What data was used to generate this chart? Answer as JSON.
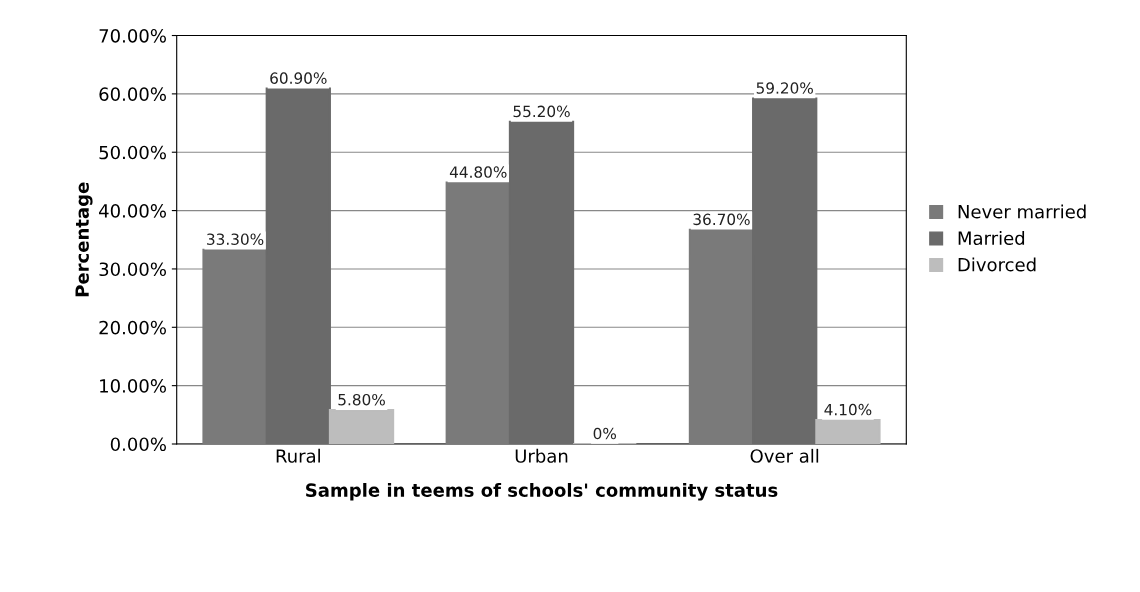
{
  "chart_data": {
    "type": "bar",
    "xlabel": "Sample in teems of schools' community status",
    "ylabel": "Percentage",
    "categories": [
      "Rural",
      "Urban",
      "Over all"
    ],
    "series": [
      {
        "name": "Never married",
        "color": "#7a7a7a",
        "values": [
          33.3,
          44.8,
          36.7
        ],
        "value_labels": [
          "33.30%",
          "44.80%",
          "36.70%"
        ]
      },
      {
        "name": "Married",
        "color": "#6a6a6a",
        "values": [
          60.9,
          55.2,
          59.2
        ],
        "value_labels": [
          "60.90%",
          "55.20%",
          "59.20%"
        ]
      },
      {
        "name": "Divorced",
        "color": "#bdbdbd",
        "values": [
          5.8,
          0,
          4.1
        ],
        "value_labels": [
          "5.80%",
          "0%",
          "4.10%"
        ]
      }
    ],
    "ylim": [
      0,
      70
    ],
    "yticks": [
      {
        "value": 0,
        "label": "0.00%"
      },
      {
        "value": 10,
        "label": "10.00%"
      },
      {
        "value": 20,
        "label": "20.00%"
      },
      {
        "value": 30,
        "label": "30.00%"
      },
      {
        "value": 40,
        "label": "40.00%"
      },
      {
        "value": 50,
        "label": "50.00%"
      },
      {
        "value": 60,
        "label": "60.00%"
      },
      {
        "value": 70,
        "label": "70.00%"
      }
    ],
    "grid": "y",
    "legend": "right"
  }
}
